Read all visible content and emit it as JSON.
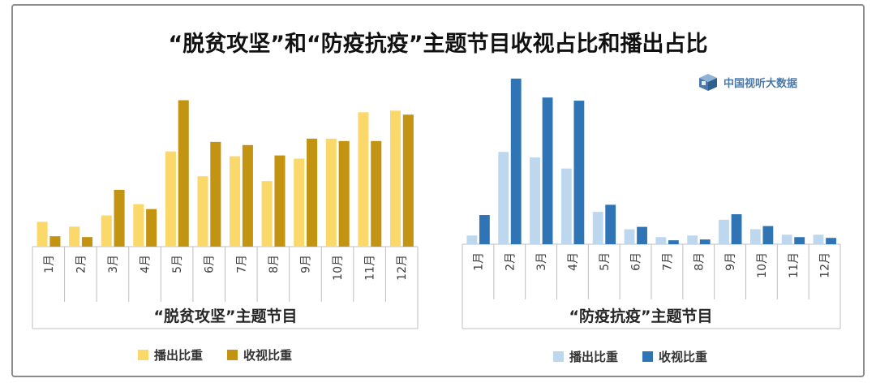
{
  "title": "“脱贫攻坚”和“防疫抗疫”主题节目收视占比和播出占比",
  "brand": {
    "name": "中国视听大数据",
    "icon": "tv-box-icon"
  },
  "colors": {
    "poverty_broadcast": "#fbd86a",
    "poverty_viewing": "#c39312",
    "epidemic_broadcast": "#bcd7ee",
    "epidemic_viewing": "#2f75b5",
    "axis": "#bfbfbf"
  },
  "chart_data": [
    {
      "type": "bar",
      "title": "“脱贫攻坚”主题节目",
      "categories": [
        "1月",
        "2月",
        "3月",
        "4月",
        "5月",
        "6月",
        "7月",
        "8月",
        "9月",
        "10月",
        "11月",
        "12月"
      ],
      "series": [
        {
          "name": "播出比重",
          "values": [
            31,
            25,
            39,
            53,
            119,
            88,
            113,
            82,
            110,
            135,
            168,
            170
          ]
        },
        {
          "name": "收视比重",
          "values": [
            13,
            12,
            71,
            47,
            183,
            131,
            127,
            114,
            135,
            132,
            132,
            165
          ]
        }
      ],
      "ylim": [
        0,
        215
      ],
      "legend": "bottom",
      "grid": false
    },
    {
      "type": "bar",
      "title": "“防疫抗疫”主题节目",
      "categories": [
        "1月",
        "2月",
        "3月",
        "4月",
        "5月",
        "6月",
        "7月",
        "8月",
        "9月",
        "10月",
        "11月",
        "12月"
      ],
      "series": [
        {
          "name": "播出比重",
          "values": [
            11,
            117,
            110,
            96,
            41,
            19,
            9,
            11,
            31,
            19,
            12,
            12
          ]
        },
        {
          "name": "收视比重",
          "values": [
            37,
            210,
            186,
            182,
            50,
            22,
            5,
            6,
            38,
            23,
            9,
            8
          ]
        }
      ],
      "ylim": [
        0,
        215
      ],
      "legend": "bottom",
      "grid": false
    }
  ]
}
